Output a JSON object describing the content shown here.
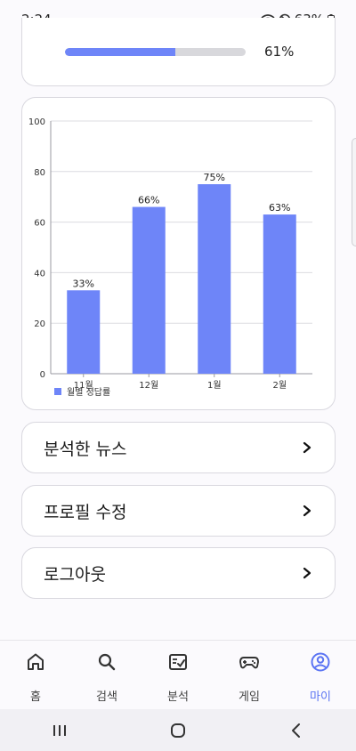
{
  "status": {
    "time": "2:24",
    "battery": "63%"
  },
  "progress": {
    "percent_label": "61%",
    "fraction": 0.61
  },
  "chart_data": {
    "type": "bar",
    "categories": [
      "11월",
      "12월",
      "1월",
      "2월"
    ],
    "values": [
      33,
      66,
      75,
      63
    ],
    "value_labels": [
      "33%",
      "66%",
      "75%",
      "63%"
    ],
    "ylim": [
      0,
      100
    ],
    "yticks": [
      0,
      20,
      40,
      60,
      80,
      100
    ],
    "legend": "월별 정답률",
    "legend_position": "bottom-left",
    "grid": true,
    "color": "#6e85f8"
  },
  "menu": {
    "news_label": "분석한 뉴스",
    "profile_label": "프로필 수정",
    "logout_label": "로그아웃"
  },
  "nav": {
    "items": [
      {
        "label": "홈",
        "icon": "home-icon"
      },
      {
        "label": "검색",
        "icon": "search-icon"
      },
      {
        "label": "분석",
        "icon": "analysis-icon"
      },
      {
        "label": "게임",
        "icon": "gamepad-icon"
      },
      {
        "label": "마이",
        "icon": "profile-icon"
      }
    ],
    "active": "마이"
  },
  "colors": {
    "accent": "#6e85f8",
    "active_nav": "#5b74f3"
  }
}
